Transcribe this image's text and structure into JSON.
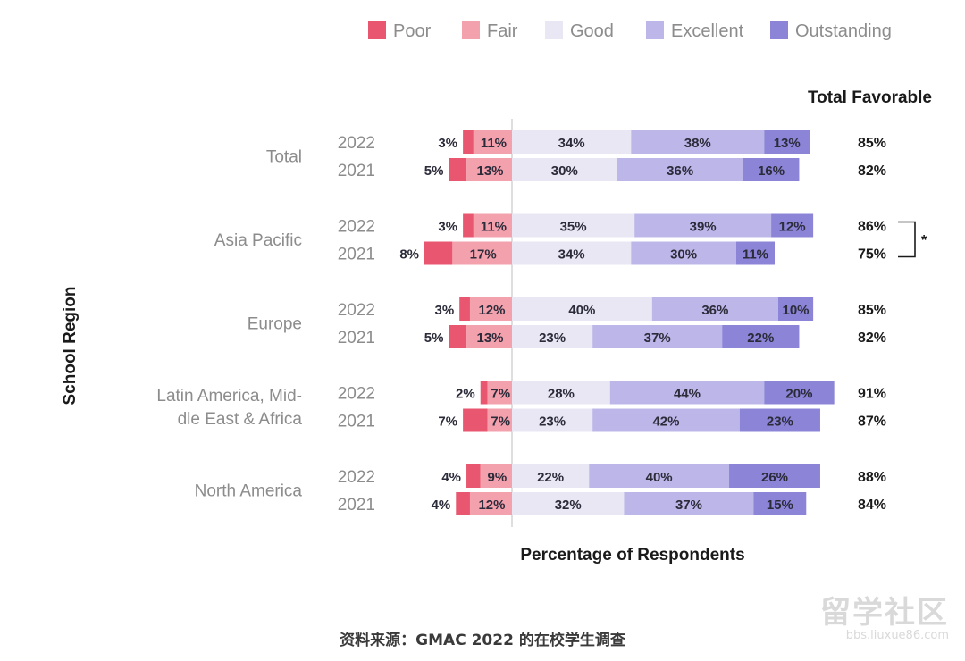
{
  "chart_data": {
    "type": "bar",
    "orientation": "horizontal",
    "stacked": "diverging",
    "legend_position": "top",
    "ylabel": "School Region",
    "xlabel": "Percentage of Respondents",
    "total_header": "Total Favorable",
    "categories_legend": [
      {
        "name": "Poor",
        "color": "#e8566f"
      },
      {
        "name": "Fair",
        "color": "#f3a1ad"
      },
      {
        "name": "Good",
        "color": "#e9e7f4"
      },
      {
        "name": "Excellent",
        "color": "#bcb7e8"
      },
      {
        "name": "Outstanding",
        "color": "#8b84d7"
      }
    ],
    "groups": [
      {
        "region_lines": [
          "Total"
        ],
        "rows": [
          {
            "year": "2022",
            "values": [
              3,
              11,
              34,
              38,
              13
            ],
            "total": "85%"
          },
          {
            "year": "2021",
            "values": [
              5,
              13,
              30,
              36,
              16
            ],
            "total": "82%"
          }
        ]
      },
      {
        "region_lines": [
          "Asia Pacific"
        ],
        "rows": [
          {
            "year": "2022",
            "values": [
              3,
              11,
              35,
              39,
              12
            ],
            "total": "86%"
          },
          {
            "year": "2021",
            "values": [
              8,
              17,
              34,
              30,
              11
            ],
            "total": "75%"
          }
        ],
        "bracket": "*"
      },
      {
        "region_lines": [
          "Europe"
        ],
        "rows": [
          {
            "year": "2022",
            "values": [
              3,
              12,
              40,
              36,
              10
            ],
            "total": "85%"
          },
          {
            "year": "2021",
            "values": [
              5,
              13,
              23,
              37,
              22
            ],
            "total": "82%"
          }
        ]
      },
      {
        "region_lines": [
          "Latin America, Mid-",
          "dle East & Africa"
        ],
        "rows": [
          {
            "year": "2022",
            "values": [
              2,
              7,
              28,
              44,
              20
            ],
            "total": "91%"
          },
          {
            "year": "2021",
            "values": [
              7,
              7,
              23,
              42,
              23
            ],
            "total": "87%"
          }
        ]
      },
      {
        "region_lines": [
          "North America"
        ],
        "rows": [
          {
            "year": "2022",
            "values": [
              4,
              9,
              22,
              40,
              26
            ],
            "total": "88%"
          },
          {
            "year": "2021",
            "values": [
              4,
              12,
              32,
              37,
              15
            ],
            "total": "84%"
          }
        ]
      }
    ]
  },
  "source_note": "资料来源：GMAC 2022 的在校学生调查",
  "watermark": {
    "main": "留学社区",
    "sub": "bbs.liuxue86.com"
  }
}
